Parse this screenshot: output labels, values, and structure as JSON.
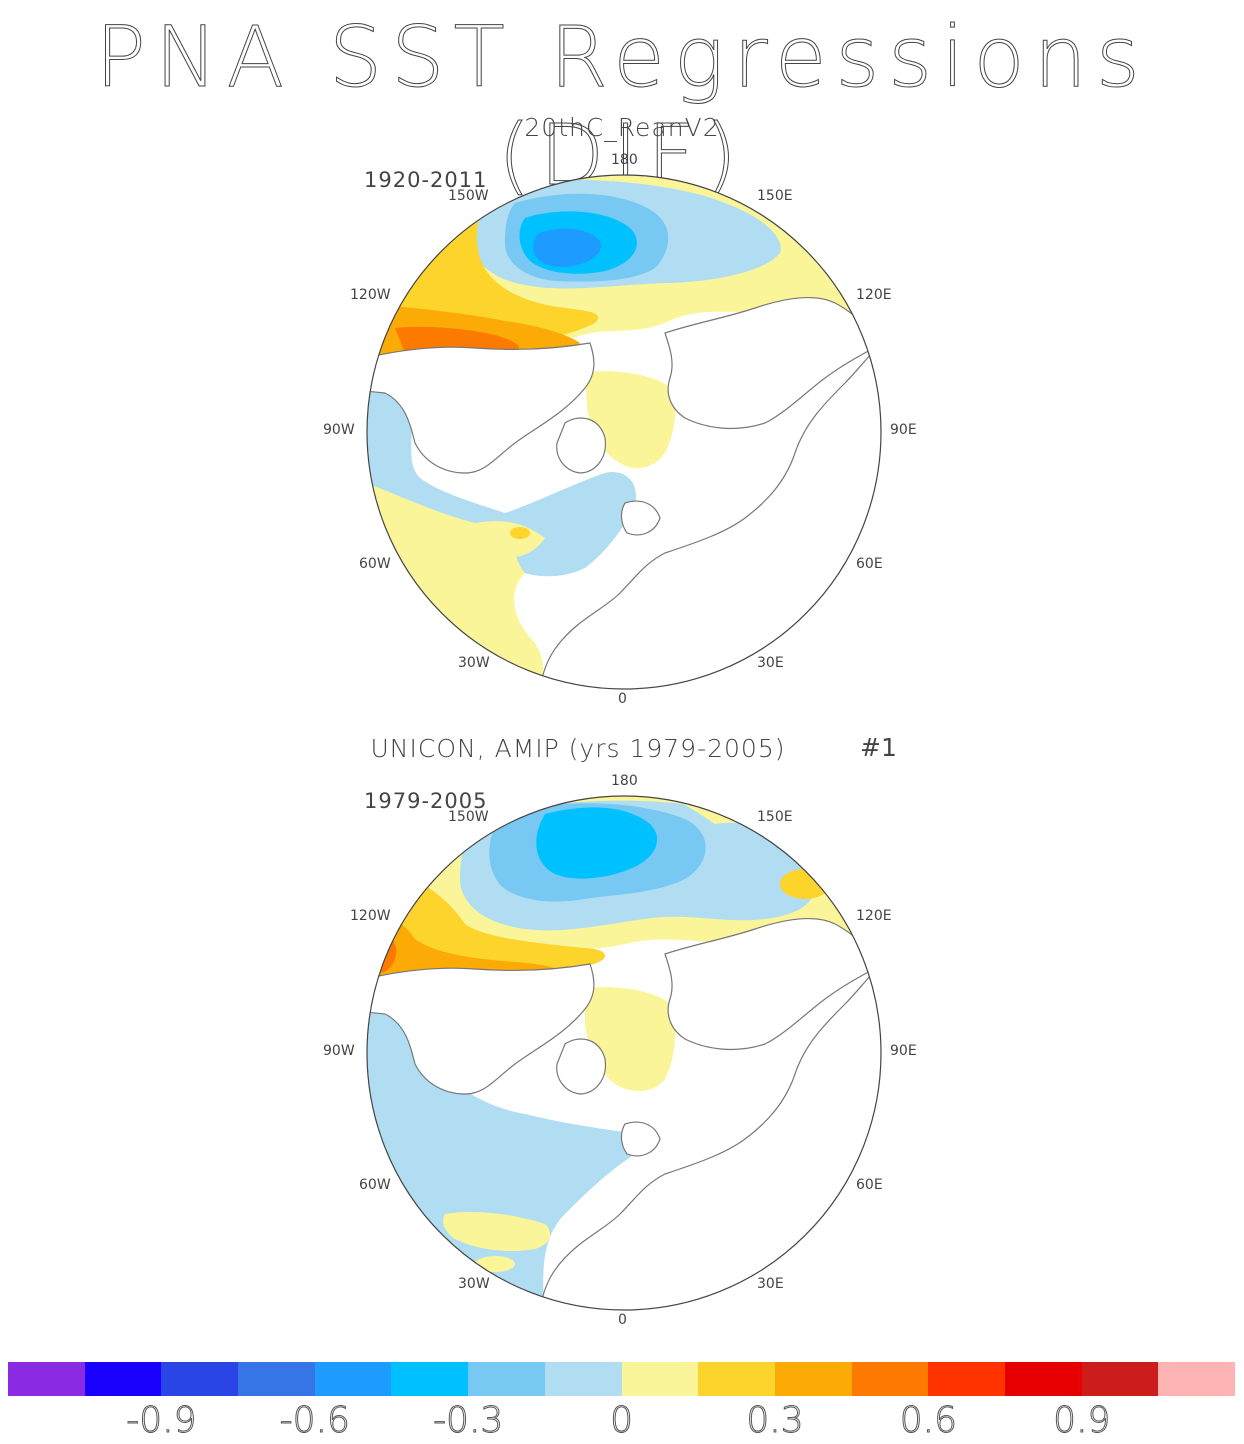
{
  "title": "PNA SST Regressions (DJF)",
  "panels": [
    {
      "title": "20thC_ReanV2",
      "period": "1920-2011",
      "marker": "",
      "lon_labels": [
        "180",
        "150W",
        "150E",
        "120W",
        "120E",
        "90W",
        "90E",
        "60W",
        "60E",
        "30W",
        "30E",
        "0"
      ]
    },
    {
      "title": "UNICON, AMIP (yrs 1979-2005)",
      "period": "1979-2005",
      "marker": "#1",
      "lon_labels": [
        "180",
        "150W",
        "150E",
        "120W",
        "120E",
        "90W",
        "90E",
        "60W",
        "60E",
        "30W",
        "30E",
        "0"
      ]
    }
  ],
  "colorbar": {
    "colors": [
      "#8a2be2",
      "#1a00ff",
      "#2a45e6",
      "#3575e6",
      "#1e9bff",
      "#00c1ff",
      "#77c8f2",
      "#b1ddf2",
      "#fbf59a",
      "#fdd42c",
      "#fcaa05",
      "#fd7a00",
      "#ff3300",
      "#e60000",
      "#cd1c1c",
      "#ffb4b4"
    ],
    "labels": [
      "-0.9",
      "-0.6",
      "-0.3",
      "0",
      "0.3",
      "0.6",
      "0.9"
    ]
  },
  "map_type": "north polar stereographic",
  "chart_data": {
    "type": "heatmap",
    "title": "PNA SST Regressions (DJF)",
    "color_scale": {
      "min": -1.05,
      "max": 1.05,
      "step": 0.15,
      "tick_labels": [
        "-0.9",
        "-0.6",
        "-0.3",
        "0",
        "0.3",
        "0.6",
        "0.9"
      ]
    },
    "panels": [
      {
        "name": "20thC_ReanV2",
        "period": "1920-2011",
        "regions": [
          {
            "region": "central North Pacific",
            "value": -0.5
          },
          {
            "region": "northeast Pacific / Alaska coast",
            "value": 0.5
          },
          {
            "region": "Arctic Ocean",
            "value": 0.1
          },
          {
            "region": "subtropical North Atlantic",
            "value": 0.1
          },
          {
            "region": "mid-latitude North Atlantic",
            "value": -0.1
          },
          {
            "region": "Gulf of Mexico",
            "value": -0.1
          }
        ]
      },
      {
        "name": "UNICON, AMIP (yrs 1979-2005)",
        "period": "1979-2005",
        "regions": [
          {
            "region": "central North Pacific",
            "value": -0.4
          },
          {
            "region": "northeast Pacific / Alaska coast",
            "value": 0.5
          },
          {
            "region": "Arctic Ocean",
            "value": 0.1
          },
          {
            "region": "North Atlantic",
            "value": -0.1
          },
          {
            "region": "Gulf of Mexico",
            "value": -0.1
          }
        ]
      }
    ]
  }
}
